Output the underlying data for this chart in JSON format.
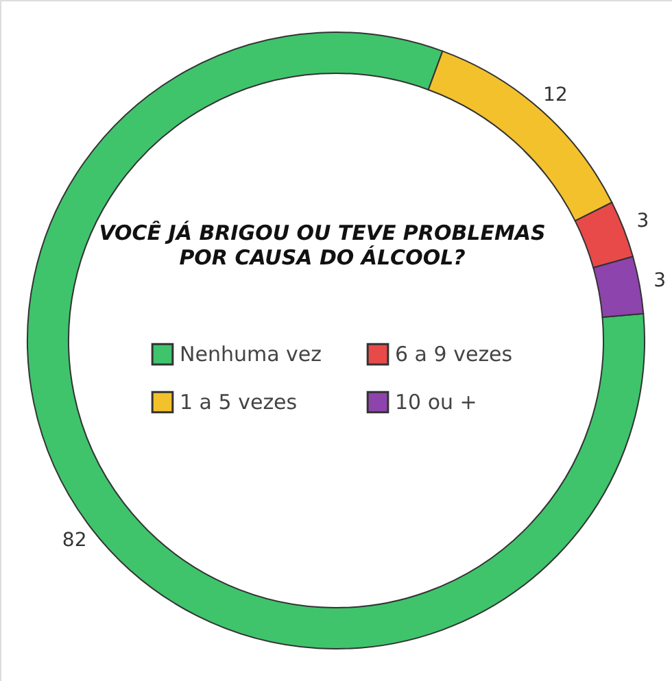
{
  "chart_data": {
    "type": "donut",
    "title": "VOCÊ JÁ BRIGOU OU TEVE PROBLEMAS POR CAUSA DO ÁLCOOL?",
    "categories": [
      "Nenhuma vez",
      "1 a 5 vezes",
      "6 a 9 vezes",
      "10 ou +"
    ],
    "values": [
      82,
      12,
      3,
      3
    ],
    "colors": [
      "#3fc46c",
      "#f3c12c",
      "#e84a4a",
      "#8e44ad"
    ],
    "data_labels": true,
    "legend": "center"
  }
}
